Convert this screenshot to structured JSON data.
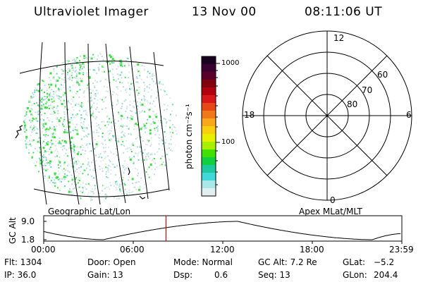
{
  "header": {
    "title": "Ultraviolet Imager",
    "date": "13 Nov 00",
    "time": "08:11:06 UT"
  },
  "colorbar": {
    "label": "photon cm⁻²s⁻¹",
    "ticks": [
      "1000",
      "100"
    ],
    "colors": [
      "#1a0020",
      "#3a0030",
      "#5a0028",
      "#800010",
      "#b00010",
      "#d81818",
      "#e84818",
      "#f07818",
      "#f8a818",
      "#f8d010",
      "#e8f000",
      "#a8f000",
      "#40e000",
      "#10d040",
      "#20c8a0",
      "#40d8d8",
      "#a8e8e8",
      "#e0f0f0"
    ]
  },
  "polar_plot": {
    "mlt_labels": {
      "top": "12",
      "right": "6",
      "bottom": "0",
      "left": "18"
    },
    "lat_labels": [
      "60",
      "70",
      "80"
    ]
  },
  "map_labels": {
    "left": "Geographic Lat/Lon",
    "right": "Apex MLat/MLT"
  },
  "altitude_plot": {
    "ylabel": "GC Alt",
    "yticks": [
      "9.0",
      "1.8"
    ],
    "xticks": [
      "00:00",
      "06:00",
      "12:00",
      "18:00",
      "23:59"
    ],
    "current_time_hours": 8.19
  },
  "info": {
    "flt": "Flt: 1304",
    "door": "Door: Open",
    "mode": "Mode: Normal",
    "gc_alt": "GC Alt: 7.2 Re",
    "glat_label": "GLat:",
    "glat_value": "−5.2",
    "ip": "IP: 36.0",
    "gain": "Gain: 13",
    "dsp_label": "Dsp:",
    "dsp_value": "0.6",
    "seq": "Seq: 13",
    "glon_label": "GLon:",
    "glon_value": "204.4"
  }
}
